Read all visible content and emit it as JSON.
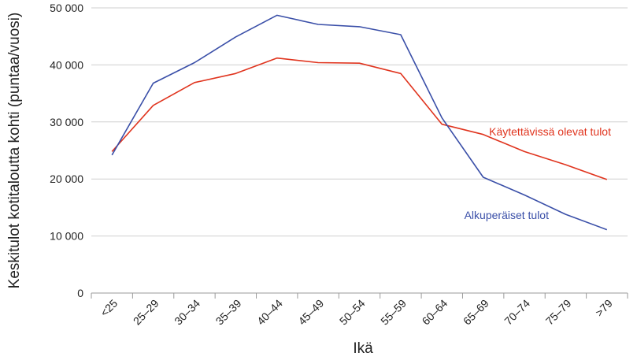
{
  "chart_data": {
    "type": "line",
    "title": "",
    "xlabel": "Ikä",
    "ylabel": "Keskitulot kotitaloutta kohti (puntaa/vuosi)",
    "categories": [
      "<25",
      "25–29",
      "30–34",
      "35–39",
      "40–44",
      "45–49",
      "50–54",
      "55–59",
      "60–64",
      "65–69",
      "70–74",
      "75–79",
      ">79"
    ],
    "ylim": [
      0,
      50000
    ],
    "yticks": [
      0,
      10000,
      20000,
      30000,
      40000,
      50000
    ],
    "ytick_labels": [
      "0",
      "10 000",
      "20 000",
      "30 000",
      "40 000",
      "50 000"
    ],
    "grid": true,
    "series": [
      {
        "name": "Käytettävissä olevat tulot",
        "color": "#e0341e",
        "values": [
          24800,
          32900,
          36900,
          38500,
          41200,
          40400,
          40300,
          38500,
          29600,
          27800,
          24800,
          22500,
          19900
        ]
      },
      {
        "name": "Alkuperäiset tulot",
        "color": "#3a4fa8",
        "values": [
          24200,
          36800,
          40400,
          44900,
          48700,
          47100,
          46700,
          45300,
          30700,
          20300,
          17200,
          13800,
          11100
        ]
      }
    ]
  }
}
